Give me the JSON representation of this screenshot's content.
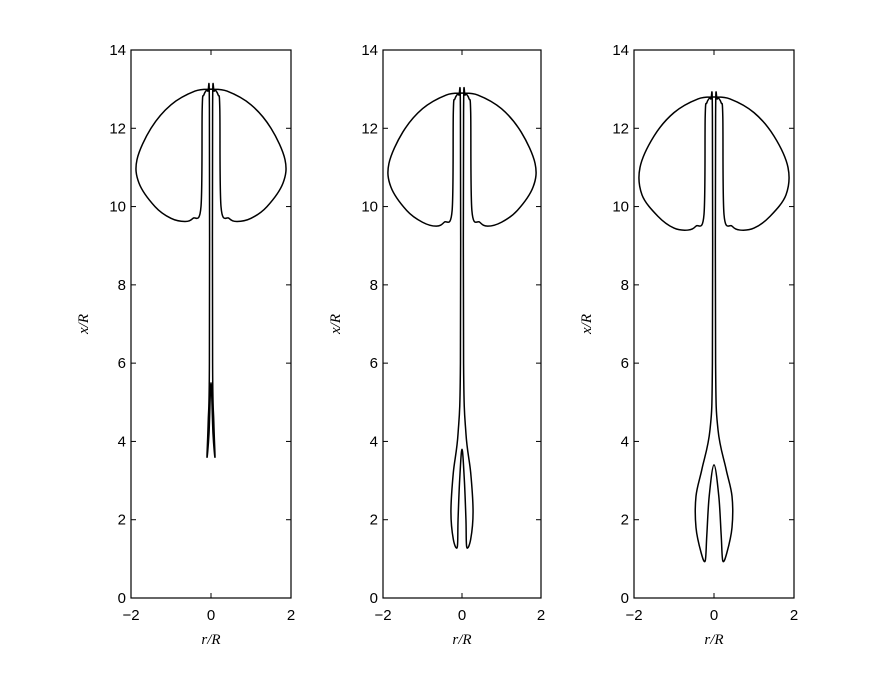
{
  "chart_data": [
    {
      "type": "line",
      "panel": "left",
      "xlabel": "r/R",
      "ylabel": "x/R",
      "xlim": [
        -2,
        2
      ],
      "ylim": [
        0,
        14
      ],
      "xticks": [
        -2,
        0,
        2
      ],
      "yticks": [
        0,
        2,
        4,
        6,
        8,
        10,
        12,
        14
      ],
      "grid": false,
      "series": [
        {
          "points": [
            [
              0,
              13.0
            ],
            [
              0.4,
              12.95
            ],
            [
              1.0,
              12.6
            ],
            [
              1.5,
              12.0
            ],
            [
              1.85,
              11.2
            ],
            [
              1.8,
              10.6
            ],
            [
              1.4,
              10.0
            ],
            [
              1.0,
              9.7
            ],
            [
              0.65,
              9.62
            ],
            [
              0.45,
              9.7
            ],
            [
              0.25,
              10.0
            ],
            [
              0.22,
              12.5
            ],
            [
              0.18,
              12.85
            ],
            [
              0.08,
              12.95
            ],
            [
              0.04,
              12.5
            ],
            [
              0.04,
              6
            ],
            [
              0.07,
              4.5
            ],
            [
              0.1,
              3.6
            ],
            [
              0.05,
              4.2
            ],
            [
              0,
              5.5
            ],
            [
              -0.05,
              4.2
            ],
            [
              -0.1,
              3.6
            ],
            [
              -0.07,
              4.5
            ],
            [
              -0.04,
              6
            ],
            [
              -0.04,
              12.5
            ],
            [
              -0.08,
              12.95
            ],
            [
              -0.18,
              12.85
            ],
            [
              -0.22,
              12.5
            ],
            [
              -0.25,
              10.0
            ],
            [
              -0.45,
              9.7
            ],
            [
              -0.65,
              9.62
            ],
            [
              -1.0,
              9.7
            ],
            [
              -1.4,
              10.0
            ],
            [
              -1.8,
              10.6
            ],
            [
              -1.85,
              11.2
            ],
            [
              -1.5,
              12.0
            ],
            [
              -1.0,
              12.6
            ],
            [
              -0.4,
              12.95
            ],
            [
              0,
              13.0
            ]
          ]
        }
      ]
    },
    {
      "type": "line",
      "panel": "middle",
      "xlabel": "r/R",
      "ylabel": "x/R",
      "xlim": [
        -2,
        2
      ],
      "ylim": [
        0,
        14
      ],
      "xticks": [
        -2,
        0,
        2
      ],
      "yticks": [
        0,
        2,
        4,
        6,
        8,
        10,
        12,
        14
      ],
      "grid": false,
      "series": [
        {
          "points": [
            [
              0,
              12.9
            ],
            [
              0.4,
              12.85
            ],
            [
              1.0,
              12.5
            ],
            [
              1.5,
              11.9
            ],
            [
              1.85,
              11.1
            ],
            [
              1.8,
              10.5
            ],
            [
              1.4,
              9.9
            ],
            [
              1.0,
              9.6
            ],
            [
              0.65,
              9.5
            ],
            [
              0.45,
              9.6
            ],
            [
              0.25,
              9.9
            ],
            [
              0.22,
              12.4
            ],
            [
              0.18,
              12.75
            ],
            [
              0.08,
              12.85
            ],
            [
              0.04,
              12.4
            ],
            [
              0.04,
              6
            ],
            [
              0.1,
              4.2
            ],
            [
              0.22,
              3.2
            ],
            [
              0.28,
              2.2
            ],
            [
              0.22,
              1.5
            ],
            [
              0.12,
              1.3
            ],
            [
              0.1,
              2.0
            ],
            [
              0.06,
              3.0
            ],
            [
              0,
              3.8
            ],
            [
              -0.06,
              3.0
            ],
            [
              -0.1,
              2.0
            ],
            [
              -0.12,
              1.3
            ],
            [
              -0.22,
              1.5
            ],
            [
              -0.28,
              2.2
            ],
            [
              -0.22,
              3.2
            ],
            [
              -0.1,
              4.2
            ],
            [
              -0.04,
              6
            ],
            [
              -0.04,
              12.4
            ],
            [
              -0.08,
              12.85
            ],
            [
              -0.18,
              12.75
            ],
            [
              -0.22,
              12.4
            ],
            [
              -0.25,
              9.9
            ],
            [
              -0.45,
              9.6
            ],
            [
              -0.65,
              9.5
            ],
            [
              -1.0,
              9.6
            ],
            [
              -1.4,
              9.9
            ],
            [
              -1.8,
              10.5
            ],
            [
              -1.85,
              11.1
            ],
            [
              -1.5,
              11.9
            ],
            [
              -1.0,
              12.5
            ],
            [
              -0.4,
              12.85
            ],
            [
              0,
              12.9
            ]
          ]
        }
      ]
    },
    {
      "type": "line",
      "panel": "right",
      "xlabel": "r/R",
      "ylabel": "x/R",
      "xlim": [
        -2,
        2
      ],
      "ylim": [
        0,
        14
      ],
      "xticks": [
        -2,
        0,
        2
      ],
      "yticks": [
        0,
        2,
        4,
        6,
        8,
        10,
        12,
        14
      ],
      "grid": false,
      "series": [
        {
          "points": [
            [
              0,
              12.8
            ],
            [
              0.4,
              12.75
            ],
            [
              1.0,
              12.4
            ],
            [
              1.5,
              11.8
            ],
            [
              1.85,
              11.0
            ],
            [
              1.8,
              10.3
            ],
            [
              1.4,
              9.75
            ],
            [
              1.0,
              9.45
            ],
            [
              0.65,
              9.4
            ],
            [
              0.45,
              9.5
            ],
            [
              0.25,
              9.8
            ],
            [
              0.22,
              12.3
            ],
            [
              0.18,
              12.65
            ],
            [
              0.08,
              12.75
            ],
            [
              0.04,
              12.3
            ],
            [
              0.04,
              6
            ],
            [
              0.1,
              4.3
            ],
            [
              0.3,
              3.3
            ],
            [
              0.45,
              2.6
            ],
            [
              0.45,
              1.8
            ],
            [
              0.32,
              1.15
            ],
            [
              0.22,
              0.95
            ],
            [
              0.18,
              1.6
            ],
            [
              0.12,
              2.6
            ],
            [
              0,
              3.4
            ],
            [
              -0.12,
              2.6
            ],
            [
              -0.18,
              1.6
            ],
            [
              -0.22,
              0.95
            ],
            [
              -0.32,
              1.15
            ],
            [
              -0.45,
              1.8
            ],
            [
              -0.45,
              2.6
            ],
            [
              -0.3,
              3.3
            ],
            [
              -0.1,
              4.3
            ],
            [
              -0.04,
              6
            ],
            [
              -0.04,
              12.3
            ],
            [
              -0.08,
              12.75
            ],
            [
              -0.18,
              12.65
            ],
            [
              -0.22,
              12.3
            ],
            [
              -0.25,
              9.8
            ],
            [
              -0.45,
              9.5
            ],
            [
              -0.65,
              9.4
            ],
            [
              -1.0,
              9.45
            ],
            [
              -1.4,
              9.75
            ],
            [
              -1.8,
              10.3
            ],
            [
              -1.85,
              11.0
            ],
            [
              -1.5,
              11.8
            ],
            [
              -1.0,
              12.4
            ],
            [
              -0.4,
              12.75
            ],
            [
              0,
              12.8
            ]
          ]
        }
      ]
    }
  ]
}
